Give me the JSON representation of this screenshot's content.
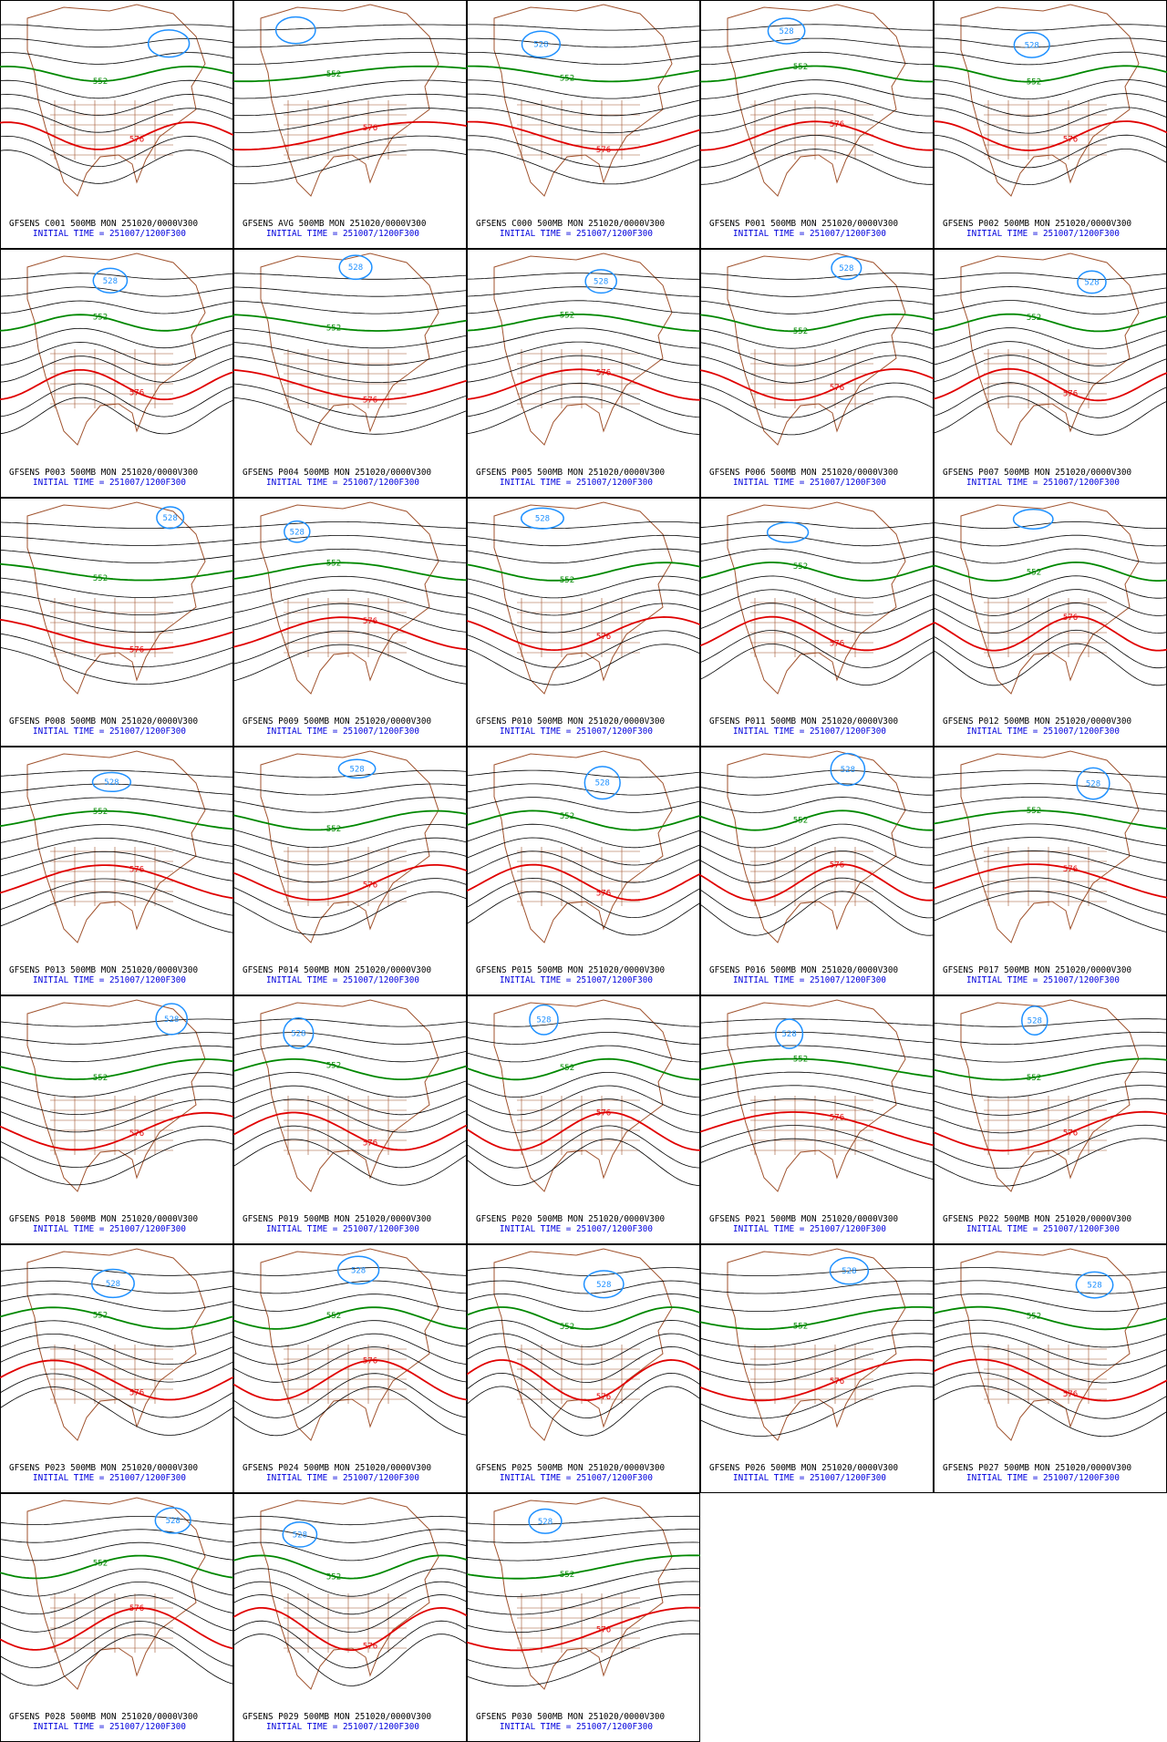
{
  "panels": [
    {
      "title": "GFSENS C001 500MB MON 251020/0000V300",
      "initial_time": "INITIAL TIME = 251007/1200F300",
      "contour_labels": [
        {
          "text": "552",
          "color": "#008800"
        },
        {
          "text": "576",
          "color": "#e00000"
        }
      ]
    },
    {
      "title": "GFSENS AVG 500MB MON 251020/0000V300",
      "initial_time": "INITIAL TIME = 251007/1200F300",
      "contour_labels": [
        {
          "text": "552",
          "color": "#008800"
        },
        {
          "text": "576",
          "color": "#e00000"
        }
      ]
    },
    {
      "title": "GFSENS C000 500MB MON 251020/0000V300",
      "initial_time": "INITIAL TIME = 251007/1200F300",
      "contour_labels": [
        {
          "text": "552",
          "color": "#008800"
        },
        {
          "text": "576",
          "color": "#e00000"
        },
        {
          "text": "528",
          "color": "#1e90ff"
        }
      ]
    },
    {
      "title": "GFSENS P001 500MB MON 251020/0000V300",
      "initial_time": "INITIAL TIME = 251007/1200F300",
      "contour_labels": [
        {
          "text": "552",
          "color": "#008800"
        },
        {
          "text": "576",
          "color": "#e00000"
        },
        {
          "text": "528",
          "color": "#1e90ff"
        }
      ]
    },
    {
      "title": "GFSENS P002 500MB MON 251020/0000V300",
      "initial_time": "INITIAL TIME = 251007/1200F300",
      "contour_labels": [
        {
          "text": "552",
          "color": "#008800"
        },
        {
          "text": "576",
          "color": "#e00000"
        },
        {
          "text": "528",
          "color": "#1e90ff"
        }
      ]
    },
    {
      "title": "GFSENS P003 500MB MON 251020/0000V300",
      "initial_time": "INITIAL TIME = 251007/1200F300",
      "contour_labels": [
        {
          "text": "552",
          "color": "#008800"
        },
        {
          "text": "576",
          "color": "#e00000"
        },
        {
          "text": "528",
          "color": "#1e90ff"
        }
      ]
    },
    {
      "title": "GFSENS P004 500MB MON 251020/0000V300",
      "initial_time": "INITIAL TIME = 251007/1200F300",
      "contour_labels": [
        {
          "text": "552",
          "color": "#008800"
        },
        {
          "text": "576",
          "color": "#e00000"
        },
        {
          "text": "528",
          "color": "#1e90ff"
        }
      ]
    },
    {
      "title": "GFSENS P005 500MB MON 251020/0000V300",
      "initial_time": "INITIAL TIME = 251007/1200F300",
      "contour_labels": [
        {
          "text": "552",
          "color": "#008800"
        },
        {
          "text": "576",
          "color": "#e00000"
        },
        {
          "text": "528",
          "color": "#1e90ff"
        }
      ]
    },
    {
      "title": "GFSENS P006 500MB MON 251020/0000V300",
      "initial_time": "INITIAL TIME = 251007/1200F300",
      "contour_labels": [
        {
          "text": "552",
          "color": "#008800"
        },
        {
          "text": "576",
          "color": "#e00000"
        },
        {
          "text": "528",
          "color": "#1e90ff"
        }
      ]
    },
    {
      "title": "GFSENS P007 500MB MON 251020/0000V300",
      "initial_time": "INITIAL TIME = 251007/1200F300",
      "contour_labels": [
        {
          "text": "552",
          "color": "#008800"
        },
        {
          "text": "576",
          "color": "#e00000"
        },
        {
          "text": "528",
          "color": "#1e90ff"
        }
      ]
    },
    {
      "title": "GFSENS P008 500MB MON 251020/0000V300",
      "initial_time": "INITIAL TIME = 251007/1200F300",
      "contour_labels": [
        {
          "text": "552",
          "color": "#008800"
        },
        {
          "text": "576",
          "color": "#e00000"
        },
        {
          "text": "528",
          "color": "#1e90ff"
        }
      ]
    },
    {
      "title": "GFSENS P009 500MB MON 251020/0000V300",
      "initial_time": "INITIAL TIME = 251007/1200F300",
      "contour_labels": [
        {
          "text": "552",
          "color": "#008800"
        },
        {
          "text": "576",
          "color": "#e00000"
        },
        {
          "text": "528",
          "color": "#1e90ff"
        }
      ]
    },
    {
      "title": "GFSENS P010 500MB MON 251020/0000V300",
      "initial_time": "INITIAL TIME = 251007/1200F300",
      "contour_labels": [
        {
          "text": "552",
          "color": "#008800"
        },
        {
          "text": "576",
          "color": "#e00000"
        },
        {
          "text": "528",
          "color": "#1e90ff"
        }
      ]
    },
    {
      "title": "GFSENS P011 500MB MON 251020/0000V300",
      "initial_time": "INITIAL TIME = 251007/1200F300",
      "contour_labels": [
        {
          "text": "552",
          "color": "#008800"
        },
        {
          "text": "576",
          "color": "#e00000"
        }
      ]
    },
    {
      "title": "GFSENS P012 500MB MON 251020/0000V300",
      "initial_time": "INITIAL TIME = 251007/1200F300",
      "contour_labels": [
        {
          "text": "552",
          "color": "#008800"
        },
        {
          "text": "576",
          "color": "#e00000"
        }
      ]
    },
    {
      "title": "GFSENS P013 500MB MON 251020/0000V300",
      "initial_time": "INITIAL TIME = 251007/1200F300",
      "contour_labels": [
        {
          "text": "552",
          "color": "#008800"
        },
        {
          "text": "576",
          "color": "#e00000"
        },
        {
          "text": "528",
          "color": "#1e90ff"
        }
      ]
    },
    {
      "title": "GFSENS P014 500MB MON 251020/0000V300",
      "initial_time": "INITIAL TIME = 251007/1200F300",
      "contour_labels": [
        {
          "text": "552",
          "color": "#008800"
        },
        {
          "text": "576",
          "color": "#e00000"
        },
        {
          "text": "528",
          "color": "#1e90ff"
        }
      ]
    },
    {
      "title": "GFSENS P015 500MB MON 251020/0000V300",
      "initial_time": "INITIAL TIME = 251007/1200F300",
      "contour_labels": [
        {
          "text": "552",
          "color": "#008800"
        },
        {
          "text": "576",
          "color": "#e00000"
        },
        {
          "text": "528",
          "color": "#1e90ff"
        }
      ]
    },
    {
      "title": "GFSENS P016 500MB MON 251020/0000V300",
      "initial_time": "INITIAL TIME = 251007/1200F300",
      "contour_labels": [
        {
          "text": "552",
          "color": "#008800"
        },
        {
          "text": "576",
          "color": "#e00000"
        },
        {
          "text": "528",
          "color": "#1e90ff"
        }
      ]
    },
    {
      "title": "GFSENS P017 500MB MON 251020/0000V300",
      "initial_time": "INITIAL TIME = 251007/1200F300",
      "contour_labels": [
        {
          "text": "552",
          "color": "#008800"
        },
        {
          "text": "576",
          "color": "#e00000"
        },
        {
          "text": "528",
          "color": "#1e90ff"
        }
      ]
    },
    {
      "title": "GFSENS P018 500MB MON 251020/0000V300",
      "initial_time": "INITIAL TIME = 251007/1200F300",
      "contour_labels": [
        {
          "text": "552",
          "color": "#008800"
        },
        {
          "text": "576",
          "color": "#e00000"
        },
        {
          "text": "528",
          "color": "#1e90ff"
        }
      ]
    },
    {
      "title": "GFSENS P019 500MB MON 251020/0000V300",
      "initial_time": "INITIAL TIME = 251007/1200F300",
      "contour_labels": [
        {
          "text": "552",
          "color": "#008800"
        },
        {
          "text": "576",
          "color": "#e00000"
        },
        {
          "text": "528",
          "color": "#1e90ff"
        }
      ]
    },
    {
      "title": "GFSENS P020 500MB MON 251020/0000V300",
      "initial_time": "INITIAL TIME = 251007/1200F300",
      "contour_labels": [
        {
          "text": "552",
          "color": "#008800"
        },
        {
          "text": "576",
          "color": "#e00000"
        },
        {
          "text": "528",
          "color": "#1e90ff"
        }
      ]
    },
    {
      "title": "GFSENS P021 500MB MON 251020/0000V300",
      "initial_time": "INITIAL TIME = 251007/1200F300",
      "contour_labels": [
        {
          "text": "552",
          "color": "#008800"
        },
        {
          "text": "576",
          "color": "#e00000"
        },
        {
          "text": "528",
          "color": "#1e90ff"
        }
      ]
    },
    {
      "title": "GFSENS P022 500MB MON 251020/0000V300",
      "initial_time": "INITIAL TIME = 251007/1200F300",
      "contour_labels": [
        {
          "text": "552",
          "color": "#008800"
        },
        {
          "text": "576",
          "color": "#e00000"
        },
        {
          "text": "528",
          "color": "#1e90ff"
        }
      ]
    },
    {
      "title": "GFSENS P023 500MB MON 251020/0000V300",
      "initial_time": "INITIAL TIME = 251007/1200F300",
      "contour_labels": [
        {
          "text": "552",
          "color": "#008800"
        },
        {
          "text": "576",
          "color": "#e00000"
        },
        {
          "text": "528",
          "color": "#1e90ff"
        }
      ]
    },
    {
      "title": "GFSENS P024 500MB MON 251020/0000V300",
      "initial_time": "INITIAL TIME = 251007/1200F300",
      "contour_labels": [
        {
          "text": "552",
          "color": "#008800"
        },
        {
          "text": "576",
          "color": "#e00000"
        },
        {
          "text": "528",
          "color": "#1e90ff"
        }
      ]
    },
    {
      "title": "GFSENS P025 500MB MON 251020/0000V300",
      "initial_time": "INITIAL TIME = 251007/1200F300",
      "contour_labels": [
        {
          "text": "552",
          "color": "#008800"
        },
        {
          "text": "576",
          "color": "#e00000"
        },
        {
          "text": "528",
          "color": "#1e90ff"
        }
      ]
    },
    {
      "title": "GFSENS P026 500MB MON 251020/0000V300",
      "initial_time": "INITIAL TIME = 251007/1200F300",
      "contour_labels": [
        {
          "text": "552",
          "color": "#008800"
        },
        {
          "text": "576",
          "color": "#e00000"
        },
        {
          "text": "528",
          "color": "#1e90ff"
        }
      ]
    },
    {
      "title": "GFSENS P027 500MB MON 251020/0000V300",
      "initial_time": "INITIAL TIME = 251007/1200F300",
      "contour_labels": [
        {
          "text": "552",
          "color": "#008800"
        },
        {
          "text": "576",
          "color": "#e00000"
        },
        {
          "text": "528",
          "color": "#1e90ff"
        }
      ]
    },
    {
      "title": "GFSENS P028 500MB MON 251020/0000V300",
      "initial_time": "INITIAL TIME = 251007/1200F300",
      "contour_labels": [
        {
          "text": "552",
          "color": "#008800"
        },
        {
          "text": "576",
          "color": "#e00000"
        },
        {
          "text": "528",
          "color": "#1e90ff"
        }
      ]
    },
    {
      "title": "GFSENS P029 500MB MON 251020/0000V300",
      "initial_time": "INITIAL TIME = 251007/1200F300",
      "contour_labels": [
        {
          "text": "552",
          "color": "#008800"
        },
        {
          "text": "576",
          "color": "#e00000"
        },
        {
          "text": "528",
          "color": "#1e90ff"
        }
      ]
    },
    {
      "title": "GFSENS P030 500MB MON 251020/0000V300",
      "initial_time": "INITIAL TIME = 251007/1200F300",
      "contour_labels": [
        {
          "text": "552",
          "color": "#008800"
        },
        {
          "text": "576",
          "color": "#e00000"
        },
        {
          "text": "528",
          "color": "#1e90ff"
        }
      ]
    }
  ]
}
